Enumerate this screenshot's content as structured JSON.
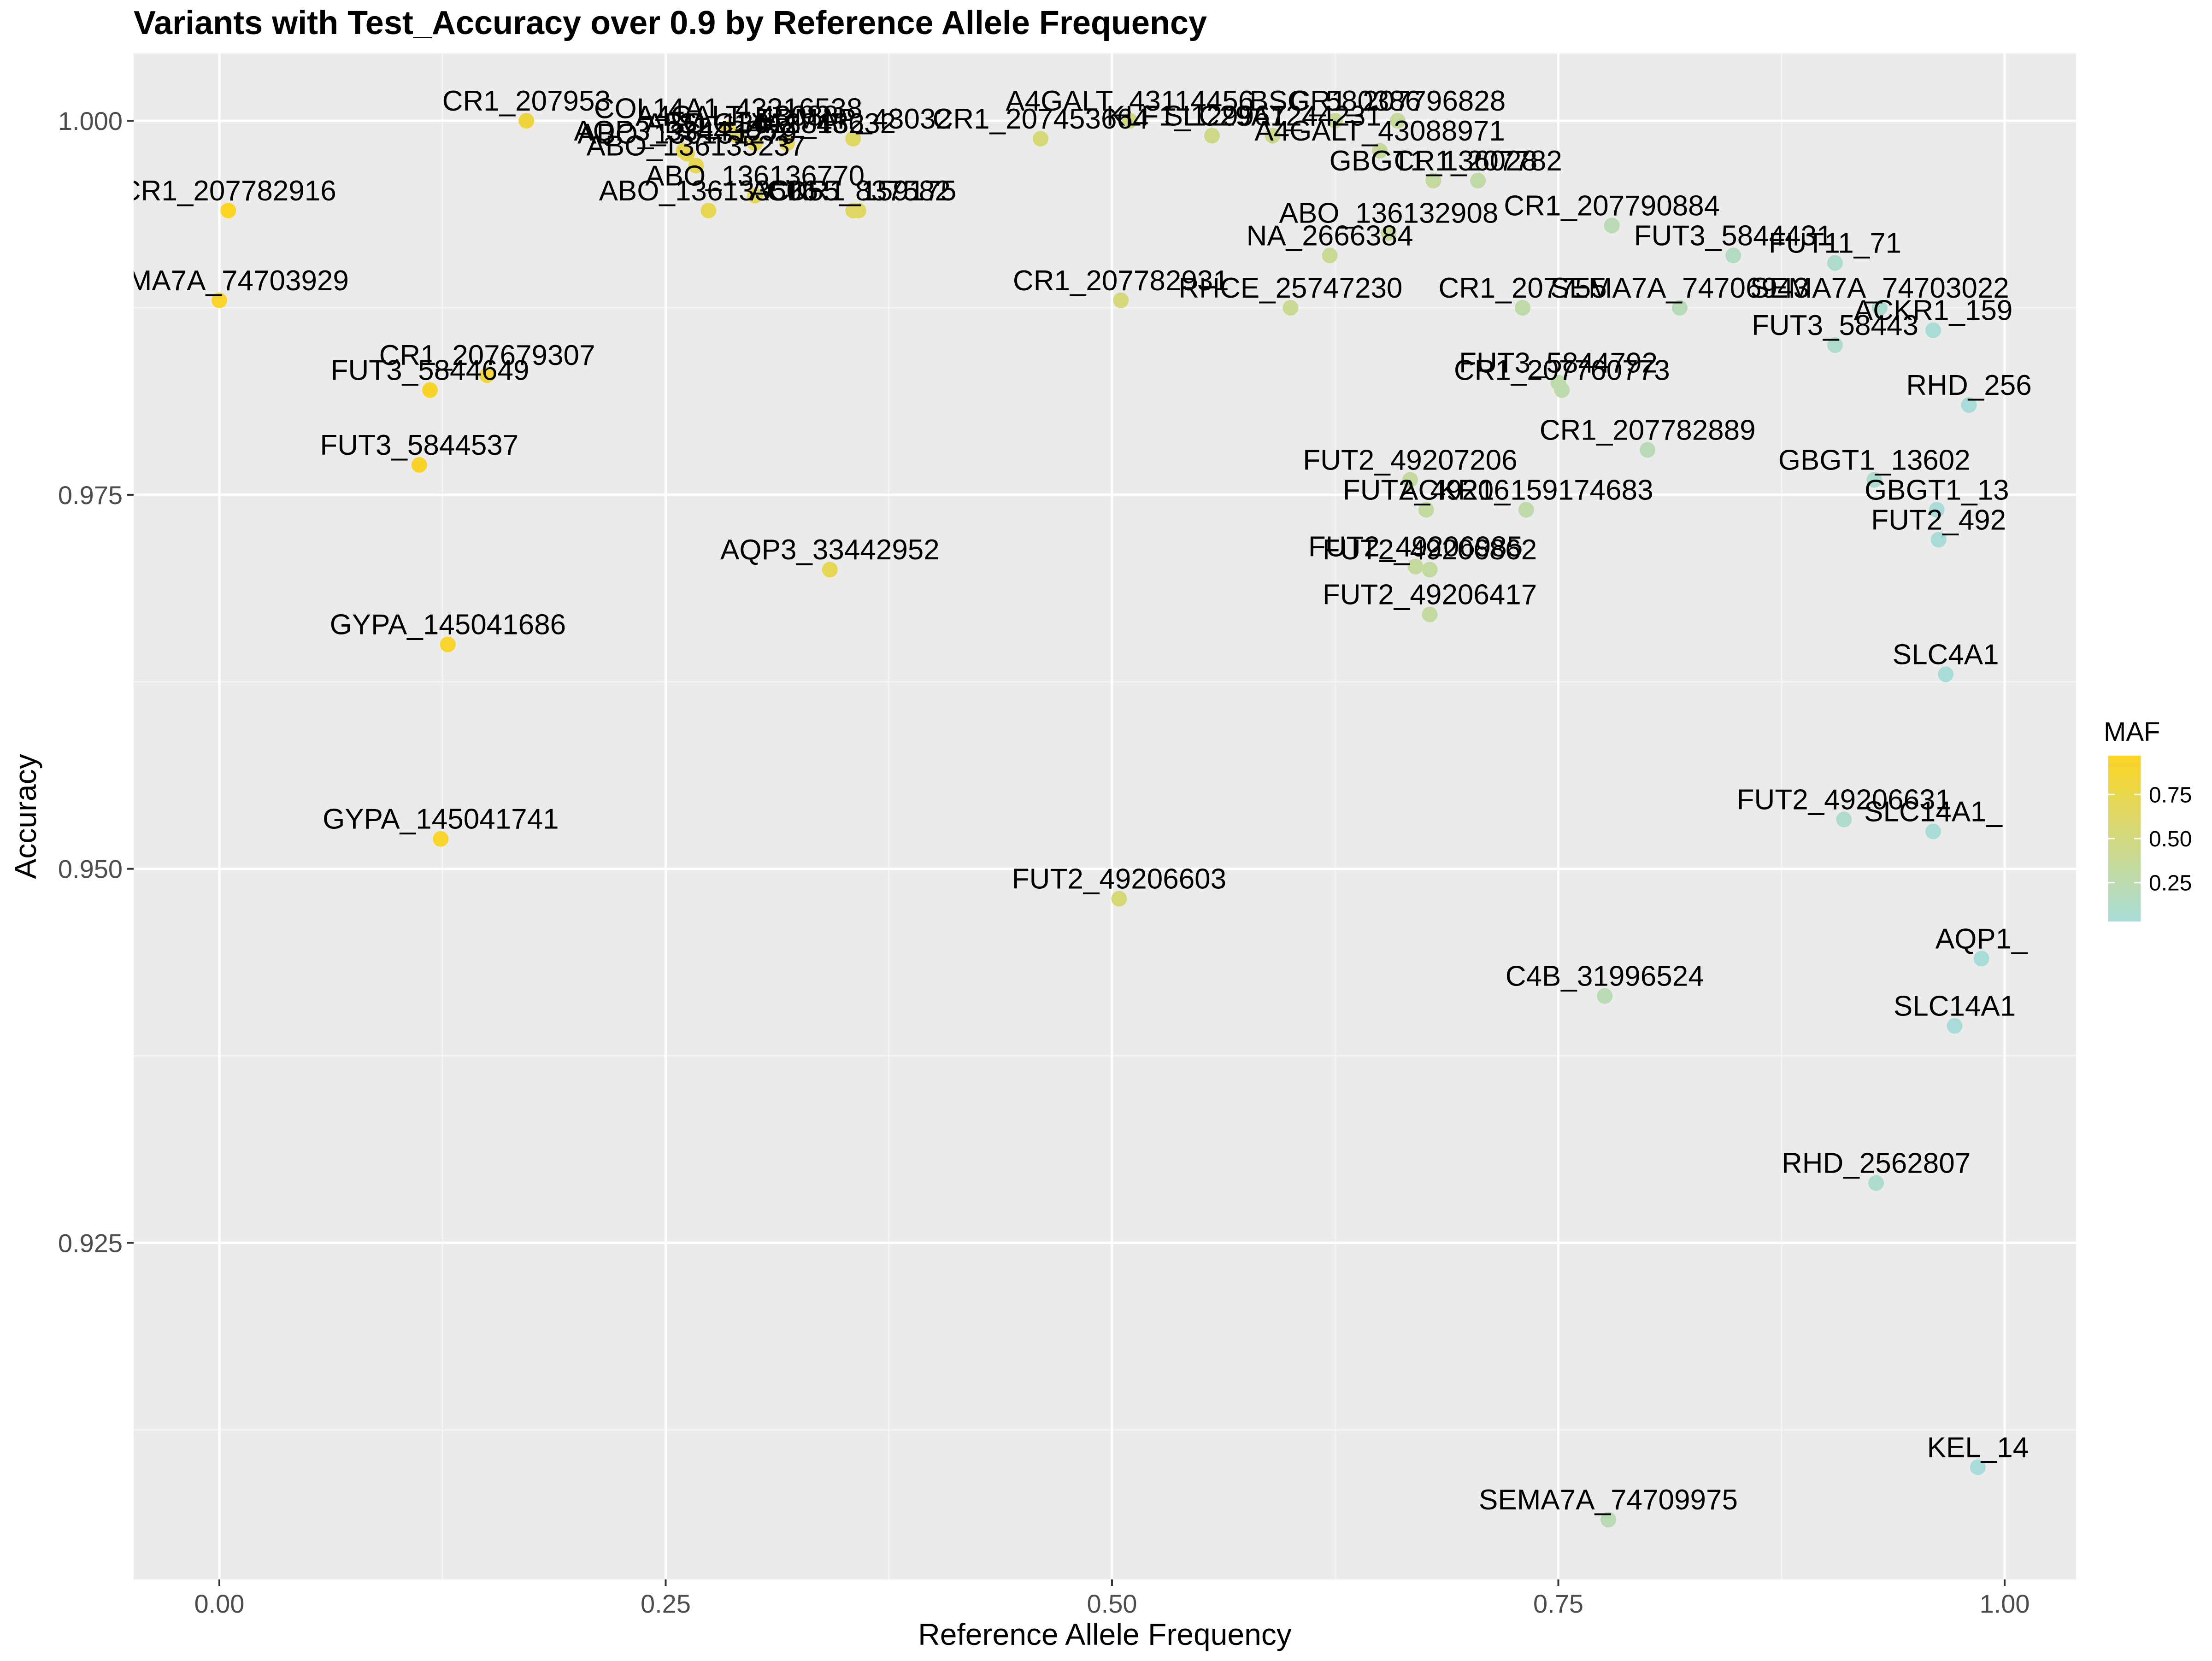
{
  "chart_data": {
    "type": "scatter",
    "title": "Variants with Test_Accuracy over 0.9 by Reference Allele Frequency",
    "xlabel": "Reference Allele Frequency",
    "ylabel": "Accuracy",
    "xlim": [
      -0.048,
      1.04
    ],
    "ylim": [
      0.9025,
      1.0045
    ],
    "x_ticks": [
      0,
      0.25,
      0.5,
      0.75,
      1
    ],
    "x_tick_labels": [
      "0.00",
      "0.25",
      "0.50",
      "0.75",
      "1.00"
    ],
    "y_ticks": [
      0.925,
      0.95,
      0.975,
      1.0
    ],
    "y_tick_labels": [
      "0.925",
      "0.950",
      "0.975",
      "1.000"
    ],
    "grid": true,
    "legend": {
      "title": "MAF",
      "position": "right",
      "ticks": [
        0.25,
        0.5,
        0.75
      ],
      "tick_labels": [
        "0.25",
        "0.50",
        "0.75"
      ],
      "range": [
        0.03,
        0.97
      ],
      "color_low": "#a8dcda",
      "color_high": "#fcd422"
    },
    "points": [
      {
        "label": "CR1_207953",
        "x": 0.172,
        "y": 1.0,
        "maf": 0.83
      },
      {
        "label": "COL14A1_43316538",
        "x": 0.285,
        "y": 0.9995,
        "maf": 0.72
      },
      {
        "label": "A4GALT_43088",
        "x": 0.29,
        "y": 0.999,
        "maf": 0.71
      },
      {
        "label": "ABO_136138132",
        "x": 0.3,
        "y": 0.9985,
        "maf": 0.7
      },
      {
        "label": "SLC14A1_45632",
        "x": 0.318,
        "y": 0.9985,
        "maf": 0.68
      },
      {
        "label": "ERMAP_43032",
        "x": 0.355,
        "y": 0.9988,
        "maf": 0.64
      },
      {
        "label": "CR1_207453664",
        "x": 0.46,
        "y": 0.9988,
        "maf": 0.54
      },
      {
        "label": "AQP3_33443052",
        "x": 0.26,
        "y": 0.998,
        "maf": 0.74
      },
      {
        "label": "ABO_136131279",
        "x": 0.262,
        "y": 0.9978,
        "maf": 0.74
      },
      {
        "label": "ABO_136135237",
        "x": 0.267,
        "y": 0.997,
        "maf": 0.73
      },
      {
        "label": "ABO_136136770",
        "x": 0.3,
        "y": 0.995,
        "maf": 0.7
      },
      {
        "label": "ABO_136133506",
        "x": 0.274,
        "y": 0.994,
        "maf": 0.73
      },
      {
        "label": "ACKR1_159175",
        "x": 0.355,
        "y": 0.994,
        "maf": 0.65
      },
      {
        "label": "CD55_837582",
        "x": 0.358,
        "y": 0.994,
        "maf": 0.64
      },
      {
        "label": "CR1_207782916",
        "x": 0.005,
        "y": 0.994,
        "maf": 0.97
      },
      {
        "label": "SEMA7A_74703929",
        "x": 0.0,
        "y": 0.988,
        "maf": 0.92
      },
      {
        "label": "CR1_207679307",
        "x": 0.15,
        "y": 0.983,
        "maf": 0.85
      },
      {
        "label": "FUT3_5844649",
        "x": 0.118,
        "y": 0.982,
        "maf": 0.94
      },
      {
        "label": "FUT3_5844537",
        "x": 0.112,
        "y": 0.977,
        "maf": 0.94
      },
      {
        "label": "AQP3_33442952",
        "x": 0.342,
        "y": 0.97,
        "maf": 0.72
      },
      {
        "label": "GYPA_145041686",
        "x": 0.128,
        "y": 0.965,
        "maf": 0.92
      },
      {
        "label": "GYPA_145041741",
        "x": 0.124,
        "y": 0.952,
        "maf": 0.92
      },
      {
        "label": "FUT2_49206603",
        "x": 0.504,
        "y": 0.948,
        "maf": 0.55
      },
      {
        "label": "A4GALT_43114456",
        "x": 0.51,
        "y": 1.0,
        "maf": 0.5
      },
      {
        "label": "KLF1_12996724",
        "x": 0.556,
        "y": 0.999,
        "maf": 0.45
      },
      {
        "label": "SLC29A1_44231",
        "x": 0.59,
        "y": 0.999,
        "maf": 0.42
      },
      {
        "label": "BSG_580386",
        "x": 0.625,
        "y": 1.0,
        "maf": 0.38
      },
      {
        "label": "CR1_207796828",
        "x": 0.66,
        "y": 1.0,
        "maf": 0.35
      },
      {
        "label": "A4GALT_43088971",
        "x": 0.65,
        "y": 0.998,
        "maf": 0.36
      },
      {
        "label": "ABO_136132908",
        "x": 0.655,
        "y": 0.9925,
        "maf": 0.36
      },
      {
        "label": "NA_2666384",
        "x": 0.622,
        "y": 0.991,
        "maf": 0.39
      },
      {
        "label": "CR1_207782931",
        "x": 0.505,
        "y": 0.988,
        "maf": 0.52
      },
      {
        "label": "RHCE_25747230",
        "x": 0.6,
        "y": 0.9875,
        "maf": 0.4
      },
      {
        "label": "GBGT1_136028",
        "x": 0.68,
        "y": 0.996,
        "maf": 0.33
      },
      {
        "label": "CR1_207782",
        "x": 0.705,
        "y": 0.996,
        "maf": 0.3
      },
      {
        "label": "CR1_207790884",
        "x": 0.78,
        "y": 0.993,
        "maf": 0.23
      },
      {
        "label": "CR1_207755",
        "x": 0.73,
        "y": 0.9875,
        "maf": 0.28
      },
      {
        "label": "SEMA7A_74706943",
        "x": 0.818,
        "y": 0.9875,
        "maf": 0.2
      },
      {
        "label": "FUT3_5844792",
        "x": 0.75,
        "y": 0.9825,
        "maf": 0.26
      },
      {
        "label": "CR1_207760773",
        "x": 0.752,
        "y": 0.982,
        "maf": 0.26
      },
      {
        "label": "CR1_207782889",
        "x": 0.8,
        "y": 0.978,
        "maf": 0.21
      },
      {
        "label": "FUT2_49207206",
        "x": 0.667,
        "y": 0.976,
        "maf": 0.34
      },
      {
        "label": "FUT2_49206",
        "x": 0.676,
        "y": 0.974,
        "maf": 0.33
      },
      {
        "label": "ACKR1_159174683",
        "x": 0.732,
        "y": 0.974,
        "maf": 0.28
      },
      {
        "label": "FUT2_49206985",
        "x": 0.67,
        "y": 0.9702,
        "maf": 0.34
      },
      {
        "label": "FUT2_49206862",
        "x": 0.678,
        "y": 0.97,
        "maf": 0.33
      },
      {
        "label": "FUT2_49206417",
        "x": 0.678,
        "y": 0.967,
        "maf": 0.33
      },
      {
        "label": "C4B_31996524",
        "x": 0.776,
        "y": 0.9415,
        "maf": 0.23
      },
      {
        "label": "SEMA7A_74709975",
        "x": 0.778,
        "y": 0.9065,
        "maf": 0.22
      },
      {
        "label": "FUT3_5844431",
        "x": 0.848,
        "y": 0.991,
        "maf": 0.16
      },
      {
        "label": "FUT11_71",
        "x": 0.905,
        "y": 0.9905,
        "maf": 0.1
      },
      {
        "label": "SEMA7A_74703022",
        "x": 0.93,
        "y": 0.9875,
        "maf": 0.08
      },
      {
        "label": "FUT3_58443",
        "x": 0.905,
        "y": 0.985,
        "maf": 0.1
      },
      {
        "label": "ACKR1_159",
        "x": 0.96,
        "y": 0.986,
        "maf": 0.05
      },
      {
        "label": "RHD_256",
        "x": 0.98,
        "y": 0.981,
        "maf": 0.03
      },
      {
        "label": "GBGT1_13602",
        "x": 0.927,
        "y": 0.976,
        "maf": 0.08
      },
      {
        "label": "GBGT1_13",
        "x": 0.962,
        "y": 0.974,
        "maf": 0.04
      },
      {
        "label": "FUT2_492",
        "x": 0.963,
        "y": 0.972,
        "maf": 0.04
      },
      {
        "label": "SLC4A1",
        "x": 0.967,
        "y": 0.963,
        "maf": 0.04
      },
      {
        "label": "FUT2_49206631",
        "x": 0.91,
        "y": 0.9533,
        "maf": 0.1
      },
      {
        "label": "SLC14A1_",
        "x": 0.96,
        "y": 0.9525,
        "maf": 0.05
      },
      {
        "label": "AQP1_",
        "x": 0.987,
        "y": 0.944,
        "maf": 0.03
      },
      {
        "label": "SLC14A1",
        "x": 0.972,
        "y": 0.9395,
        "maf": 0.04
      },
      {
        "label": "RHD_2562807",
        "x": 0.928,
        "y": 0.929,
        "maf": 0.08
      },
      {
        "label": "KEL_14",
        "x": 0.985,
        "y": 0.91,
        "maf": 0.03
      }
    ]
  }
}
